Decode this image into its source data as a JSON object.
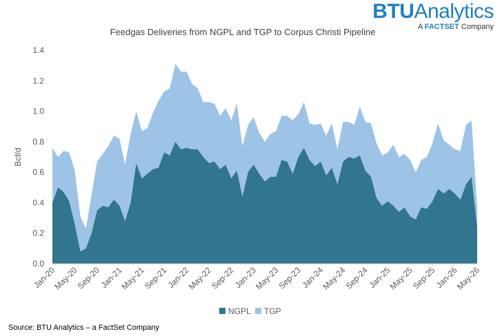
{
  "logo": {
    "name_bold": "BTU",
    "name_rest": "Analytics",
    "tag_pre": "A",
    "tag_brand": "FACTSET",
    "tag_post": "Company"
  },
  "source": "Source: BTU Analytics – a FactSet Company",
  "chart_data": {
    "type": "area",
    "stacked": true,
    "title": "Feedgas Deliveries from NGPL and TGP to Corpus Christi Pipeline",
    "ylabel": "Bcf/d",
    "xlabel": "",
    "ylim": [
      0,
      1.4
    ],
    "yticks": [
      "0.0",
      "0.2",
      "0.4",
      "0.6",
      "0.8",
      "1.0",
      "1.2",
      "1.4"
    ],
    "xtick_labels": [
      "Jan-20",
      "May-20",
      "Sep-20",
      "Jan-21",
      "May-21",
      "Sep-21",
      "Jan-22",
      "May-22",
      "Sep-22",
      "Jan-23",
      "May-23",
      "Sep-23",
      "Jan-24",
      "May-24",
      "Sep-24",
      "Jan-25",
      "May-25",
      "Sep-25",
      "Jan-26",
      "May-26"
    ],
    "legend": "bottom",
    "grid": false,
    "colors": {
      "NGPL": "#31758f",
      "TGP": "#9dc3e6"
    },
    "series": [
      {
        "name": "NGPL",
        "values": [
          0.4,
          0.5,
          0.47,
          0.41,
          0.26,
          0.08,
          0.1,
          0.2,
          0.35,
          0.38,
          0.37,
          0.42,
          0.38,
          0.28,
          0.4,
          0.66,
          0.56,
          0.59,
          0.62,
          0.63,
          0.73,
          0.71,
          0.8,
          0.75,
          0.76,
          0.75,
          0.75,
          0.7,
          0.66,
          0.67,
          0.62,
          0.65,
          0.56,
          0.61,
          0.44,
          0.6,
          0.65,
          0.59,
          0.54,
          0.57,
          0.57,
          0.68,
          0.67,
          0.59,
          0.7,
          0.76,
          0.68,
          0.64,
          0.67,
          0.58,
          0.63,
          0.52,
          0.67,
          0.7,
          0.69,
          0.71,
          0.61,
          0.57,
          0.43,
          0.38,
          0.41,
          0.38,
          0.34,
          0.37,
          0.31,
          0.29,
          0.37,
          0.36,
          0.41,
          0.49,
          0.46,
          0.49,
          0.46,
          0.42,
          0.52,
          0.57,
          0.24
        ]
      },
      {
        "name": "TGP",
        "values": [
          0.36,
          0.2,
          0.27,
          0.32,
          0.35,
          0.23,
          0.13,
          0.25,
          0.32,
          0.34,
          0.4,
          0.42,
          0.44,
          0.37,
          0.45,
          0.34,
          0.31,
          0.3,
          0.37,
          0.44,
          0.4,
          0.44,
          0.51,
          0.51,
          0.5,
          0.43,
          0.4,
          0.36,
          0.4,
          0.38,
          0.35,
          0.37,
          0.38,
          0.44,
          0.33,
          0.31,
          0.31,
          0.27,
          0.26,
          0.28,
          0.3,
          0.29,
          0.3,
          0.35,
          0.28,
          0.3,
          0.24,
          0.27,
          0.25,
          0.26,
          0.29,
          0.23,
          0.26,
          0.23,
          0.22,
          0.32,
          0.32,
          0.35,
          0.36,
          0.33,
          0.32,
          0.4,
          0.36,
          0.35,
          0.37,
          0.31,
          0.31,
          0.34,
          0.38,
          0.43,
          0.35,
          0.29,
          0.29,
          0.32,
          0.39,
          0.37,
          0.13
        ]
      }
    ]
  }
}
